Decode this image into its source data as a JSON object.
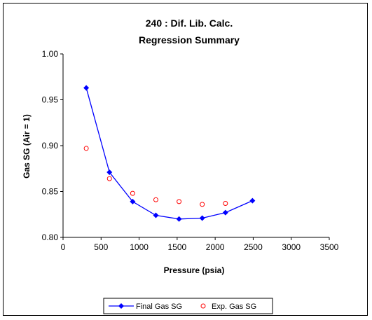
{
  "chart_data": {
    "type": "line",
    "title": "240 : Dif. Lib. Calc.",
    "subtitle": "Regression Summary",
    "xlabel": "Pressure (psia)",
    "ylabel": "Gas SG (Air = 1)",
    "xlim": [
      0,
      3500
    ],
    "ylim": [
      0.8,
      1.0
    ],
    "xticks": [
      0,
      500,
      1000,
      1500,
      2000,
      2500,
      3000,
      3500
    ],
    "xtick_labels": [
      "0",
      "500",
      "1000",
      "1500",
      "2000",
      "2500",
      "3000",
      "3500"
    ],
    "yticks": [
      0.8,
      0.85,
      0.9,
      0.95,
      1.0
    ],
    "ytick_labels": [
      "0.80",
      "0.85",
      "0.90",
      "0.95",
      "1.00"
    ],
    "grid": false,
    "legend_position": "bottom",
    "series": [
      {
        "name": "Final Gas SG",
        "style": "line-diamond",
        "color": "#0000FF",
        "x": [
          305,
          610,
          915,
          1220,
          1525,
          1830,
          2135,
          2490
        ],
        "y": [
          0.963,
          0.871,
          0.839,
          0.824,
          0.82,
          0.821,
          0.827,
          0.84
        ]
      },
      {
        "name": "Exp. Gas SG",
        "style": "circle-open",
        "color": "#FF0000",
        "x": [
          305,
          610,
          915,
          1220,
          1525,
          1830,
          2135
        ],
        "y": [
          0.897,
          0.864,
          0.848,
          0.841,
          0.839,
          0.836,
          0.837
        ]
      }
    ]
  }
}
